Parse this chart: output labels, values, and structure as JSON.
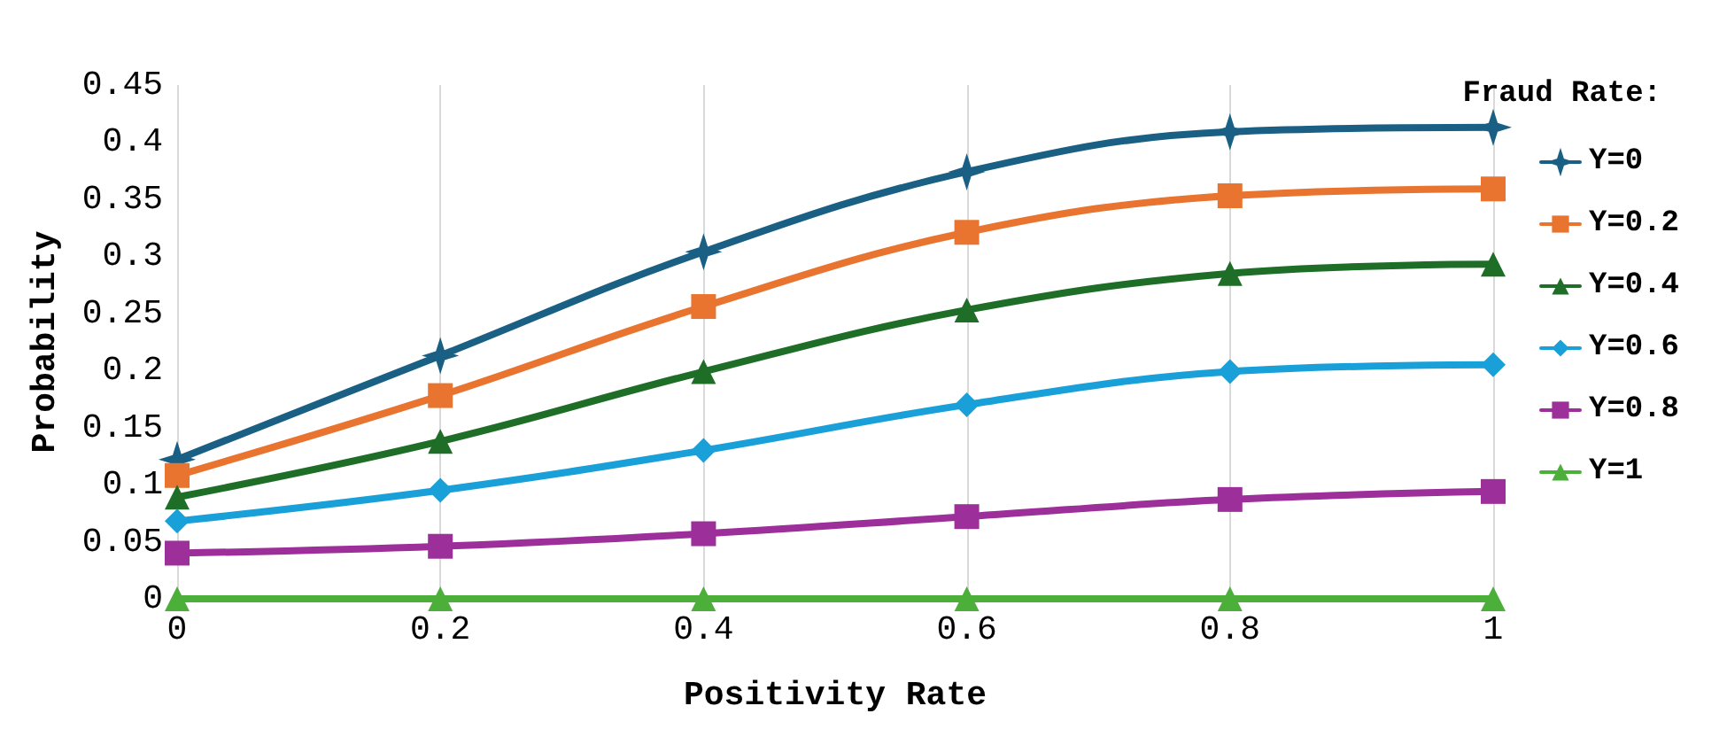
{
  "chart_data": {
    "type": "line",
    "xlabel": "Positivity Rate",
    "ylabel": "Probability",
    "legend_title": "Fraud Rate:",
    "x": [
      0,
      0.2,
      0.4,
      0.6,
      0.8,
      1
    ],
    "xlim": [
      0,
      1
    ],
    "xticks": [
      0,
      0.2,
      0.4,
      0.6,
      0.8,
      1
    ],
    "ylim": [
      0,
      0.45
    ],
    "yticks": [
      0,
      0.05,
      0.1,
      0.15,
      0.2,
      0.25,
      0.3,
      0.35,
      0.4,
      0.45
    ],
    "grid": "x",
    "legend": "right",
    "line_style": "solid",
    "series": [
      {
        "name": "Y=0",
        "color": "#1a5f84",
        "marker": "star",
        "values": [
          0.122,
          0.213,
          0.304,
          0.374,
          0.409,
          0.413
        ]
      },
      {
        "name": "Y=0.2",
        "color": "#e8742f",
        "marker": "square",
        "values": [
          0.108,
          0.178,
          0.256,
          0.321,
          0.353,
          0.359
        ]
      },
      {
        "name": "Y=0.4",
        "color": "#1e6e28",
        "marker": "triangle",
        "values": [
          0.089,
          0.138,
          0.199,
          0.253,
          0.285,
          0.293
        ]
      },
      {
        "name": "Y=0.6",
        "color": "#1aa0d8",
        "marker": "diamond",
        "values": [
          0.068,
          0.095,
          0.13,
          0.17,
          0.199,
          0.205
        ]
      },
      {
        "name": "Y=0.8",
        "color": "#9c2f9a",
        "marker": "square",
        "values": [
          0.04,
          0.046,
          0.057,
          0.072,
          0.087,
          0.094
        ]
      },
      {
        "name": "Y=1",
        "color": "#4caf3a",
        "marker": "triangle",
        "values": [
          0,
          0,
          0,
          0,
          0,
          0
        ]
      }
    ]
  }
}
